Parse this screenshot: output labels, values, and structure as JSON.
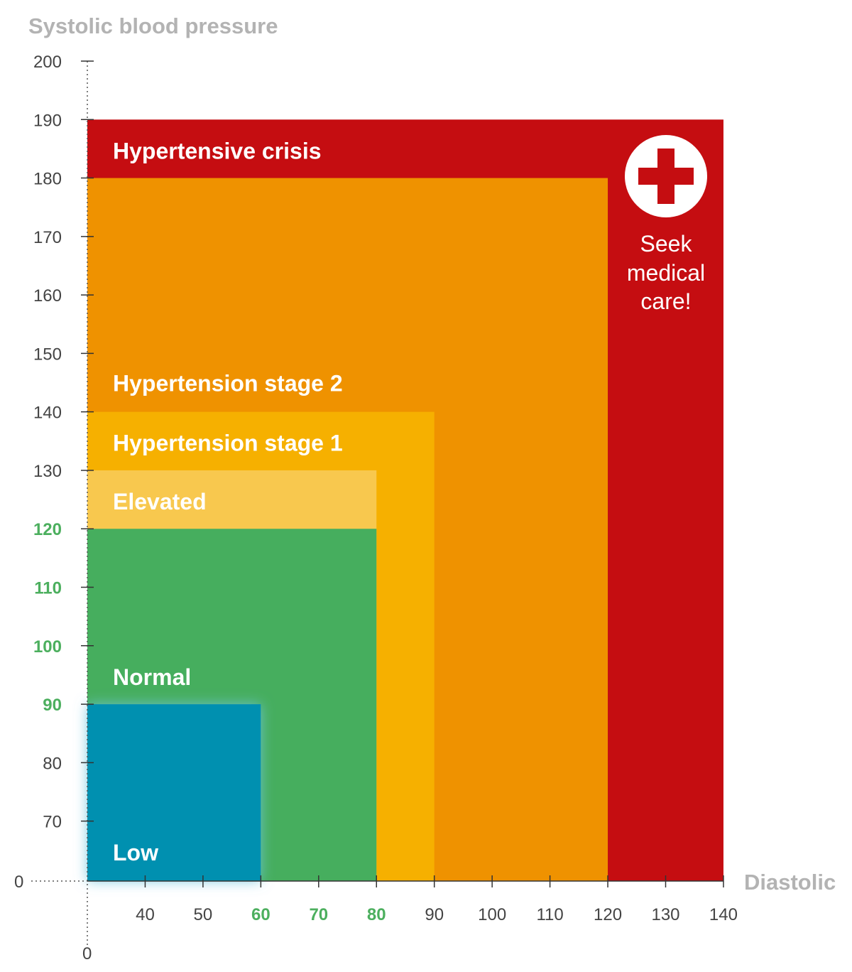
{
  "chart_data": {
    "type": "area",
    "ylabel": "Systolic blood pressure",
    "xlabel": "Diastolic",
    "y_origin_label": "0",
    "x_origin_label": "0",
    "ylim": [
      60,
      200
    ],
    "xlim": [
      30,
      140
    ],
    "y_ticks": [
      {
        "value": 200,
        "label": "200",
        "highlight": false
      },
      {
        "value": 190,
        "label": "190",
        "highlight": false
      },
      {
        "value": 180,
        "label": "180",
        "highlight": false
      },
      {
        "value": 170,
        "label": "170",
        "highlight": false
      },
      {
        "value": 160,
        "label": "160",
        "highlight": false
      },
      {
        "value": 150,
        "label": "150",
        "highlight": false
      },
      {
        "value": 140,
        "label": "140",
        "highlight": false
      },
      {
        "value": 130,
        "label": "130",
        "highlight": false
      },
      {
        "value": 120,
        "label": "120",
        "highlight": true
      },
      {
        "value": 110,
        "label": "110",
        "highlight": true
      },
      {
        "value": 100,
        "label": "100",
        "highlight": true
      },
      {
        "value": 90,
        "label": "90",
        "highlight": true
      },
      {
        "value": 80,
        "label": "80",
        "highlight": false
      },
      {
        "value": 70,
        "label": "70",
        "highlight": false
      }
    ],
    "x_ticks": [
      {
        "value": 40,
        "label": "40",
        "highlight": false
      },
      {
        "value": 50,
        "label": "50",
        "highlight": false
      },
      {
        "value": 60,
        "label": "60",
        "highlight": true
      },
      {
        "value": 70,
        "label": "70",
        "highlight": true
      },
      {
        "value": 80,
        "label": "80",
        "highlight": true
      },
      {
        "value": 90,
        "label": "90",
        "highlight": false
      },
      {
        "value": 100,
        "label": "100",
        "highlight": false
      },
      {
        "value": 110,
        "label": "110",
        "highlight": false
      },
      {
        "value": 120,
        "label": "120",
        "highlight": false
      },
      {
        "value": 130,
        "label": "130",
        "highlight": false
      },
      {
        "value": 140,
        "label": "140",
        "highlight": false
      }
    ],
    "zones": [
      {
        "id": "hypertensive-crisis",
        "name": "Hypertensive crisis",
        "systolic_max": 190,
        "diastolic_max": 140,
        "color": "#c50d11"
      },
      {
        "id": "hypertension-stage-2",
        "name": "Hypertension stage 2",
        "systolic_max": 180,
        "diastolic_max": 120,
        "color": "#ef9200"
      },
      {
        "id": "hypertension-stage-1",
        "name": "Hypertension stage 1",
        "systolic_max": 140,
        "diastolic_max": 90,
        "color": "#f6b000"
      },
      {
        "id": "elevated",
        "name": "Elevated",
        "systolic_max": 130,
        "diastolic_max": 80,
        "color": "#f8c84e"
      },
      {
        "id": "normal",
        "name": "Normal",
        "systolic_max": 120,
        "diastolic_max": 80,
        "color": "#46ae5e"
      },
      {
        "id": "low",
        "name": "Low",
        "systolic_max": 90,
        "diastolic_max": 60,
        "color": "#0090b0"
      }
    ],
    "annotation": {
      "lines": [
        "Seek",
        "medical",
        "care!"
      ],
      "icon": "red-cross-icon"
    },
    "colors": {
      "highlight_tick": "#4caf5e",
      "axis_title": "#b3b3b3",
      "tick_text": "#444444"
    }
  }
}
